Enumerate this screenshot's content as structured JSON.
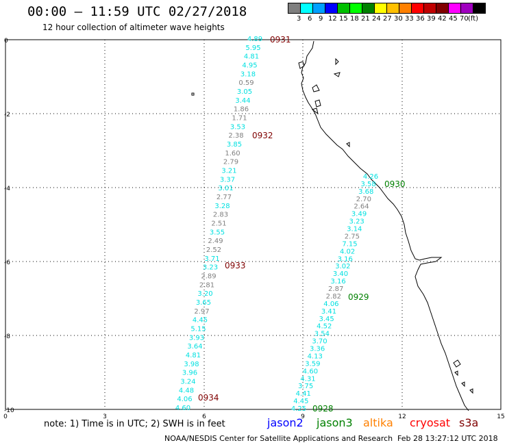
{
  "title": "00:00 – 11:59 UTC 02/27/2018",
  "subtitle": "12 hour collection of altimeter wave heights",
  "color_scale": {
    "labels": [
      "3",
      "6",
      "9",
      "12",
      "15",
      "18",
      "21",
      "24",
      "27",
      "30",
      "33",
      "36",
      "39",
      "42",
      "45",
      "70",
      "(ft)"
    ],
    "colors": [
      "#7f7f7f",
      "#00ffff",
      "#00a0ff",
      "#0000ff",
      "#00c000",
      "#00ff00",
      "#008000",
      "#ffff00",
      "#ffc000",
      "#ff8000",
      "#ff0000",
      "#c00000",
      "#800000",
      "#ff00ff",
      "#a000c0",
      "#000000"
    ]
  },
  "axes": {
    "y_ticks": [
      "0",
      "-2",
      "-4",
      "-6",
      "-8",
      "-10"
    ],
    "x_ticks": [
      "0",
      "3",
      "6",
      "9",
      "12",
      "15"
    ]
  },
  "passes": [
    {
      "id": "0931",
      "color": "#7f0000"
    },
    {
      "id": "0932",
      "color": "#7f0000"
    },
    {
      "id": "0933",
      "color": "#7f0000"
    },
    {
      "id": "0934",
      "color": "#7f0000"
    },
    {
      "id": "0930",
      "color": "#008000"
    },
    {
      "id": "0929",
      "color": "#008000"
    },
    {
      "id": "0928",
      "color": "#008000"
    }
  ],
  "track_a": [
    "4.89",
    "5.95",
    "4.81",
    "4.95",
    "3.18",
    "0.59",
    "3.05",
    "3.44",
    "1.86",
    "1.71",
    "3.53",
    "2.38",
    "3.85",
    "1.60",
    "2.79",
    "3.21",
    "3.37",
    "3.01",
    "2.77",
    "3.28",
    "2.83",
    "2.51",
    "3.55",
    "2.49",
    "2.52",
    "3.71",
    "3.23",
    "2.89",
    "2.81",
    "3.20",
    "3.65",
    "2.97",
    "4.45",
    "5.15",
    "3.93",
    "3.64",
    "4.81",
    "3.98",
    "3.96",
    "3.24",
    "4.48",
    "4.06",
    "4.60"
  ],
  "track_b": [
    "4.26",
    "3.58",
    "3.68",
    "2.70",
    "2.64",
    "3.49",
    "3.23",
    "3.14",
    "2.75",
    "7.15",
    "4.02",
    "3.16",
    "3.02",
    "3.40",
    "3.16",
    "2.87",
    "2.82",
    "4.06",
    "3.41",
    "3.45",
    "4.52",
    "3.54",
    "3.70",
    "3.36",
    "4.13",
    "3.59",
    "4.60",
    "4.31",
    "3.75",
    "4.41",
    "4.45",
    "4.25"
  ],
  "note": "note: 1) Time is in UTC; 2) SWH is in feet",
  "legend": [
    {
      "label": "jason2",
      "color": "#0000ff"
    },
    {
      "label": "jason3",
      "color": "#008000"
    },
    {
      "label": "altika",
      "color": "#ff8000"
    },
    {
      "label": "cryosat",
      "color": "#ff0000"
    },
    {
      "label": "s3a",
      "color": "#7f0000"
    }
  ],
  "footer": "NOAA/NESDIS Center for Satellite Applications and Research",
  "footer_date": "Feb 28 13:27:12 UTC 2018"
}
